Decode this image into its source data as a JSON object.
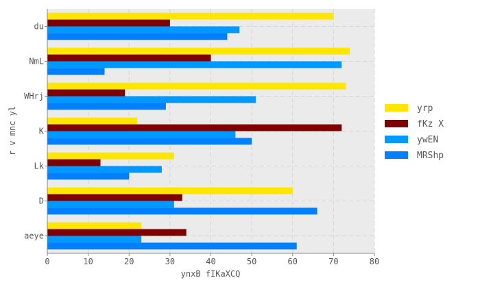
{
  "chart_data": {
    "type": "bar",
    "orientation": "horizontal",
    "categories": [
      "du",
      "NmL",
      "WHrj",
      "K",
      "Lk",
      "D",
      "aeye"
    ],
    "series": [
      {
        "name": "yrp",
        "color": "#ffe600",
        "values": [
          70,
          74,
          73,
          22,
          31,
          60,
          23
        ]
      },
      {
        "name": "fKz X",
        "color": "#7f0000",
        "values": [
          30,
          40,
          19,
          72,
          13,
          33,
          34
        ]
      },
      {
        "name": "ywEN",
        "color": "#0099ff",
        "values": [
          47,
          72,
          51,
          46,
          28,
          31,
          23
        ]
      },
      {
        "name": "MRShp",
        "color": "#0080ff",
        "values": [
          44,
          14,
          29,
          50,
          20,
          66,
          61
        ]
      }
    ],
    "xlabel": "ynxB  fIKaXCQ",
    "ylabel": "r v  mnc yl",
    "xlim": [
      0,
      80
    ],
    "xticks": [
      0,
      10,
      20,
      30,
      40,
      50,
      60,
      70,
      80
    ],
    "grid": true,
    "legend_position": "right",
    "background": "#ebebeb"
  }
}
